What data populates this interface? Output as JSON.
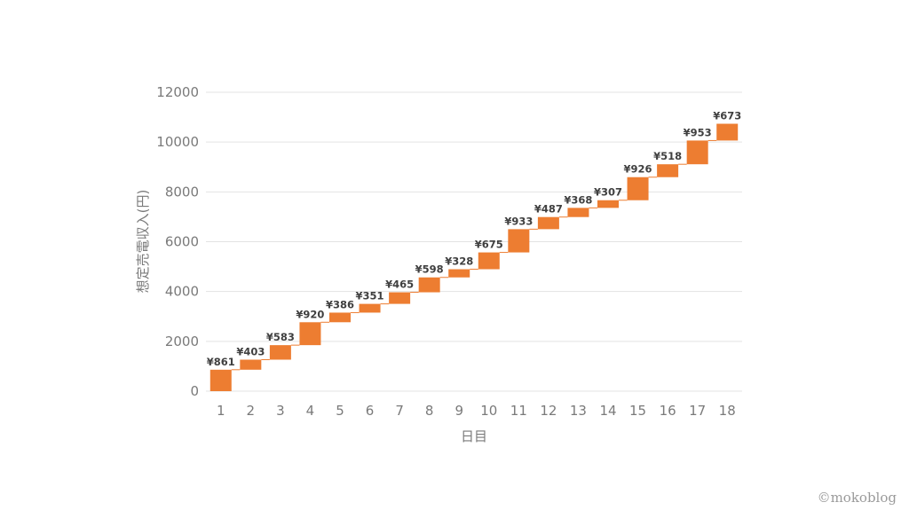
{
  "chart_data": {
    "type": "waterfall",
    "categories": [
      "1",
      "2",
      "3",
      "4",
      "5",
      "6",
      "7",
      "8",
      "9",
      "10",
      "11",
      "12",
      "13",
      "14",
      "15",
      "16",
      "17",
      "18"
    ],
    "values": [
      861,
      403,
      583,
      920,
      386,
      351,
      465,
      598,
      328,
      675,
      933,
      487,
      368,
      307,
      926,
      518,
      953,
      673
    ],
    "data_labels": [
      "¥861",
      "¥403",
      "¥583",
      "¥920",
      "¥386",
      "¥351",
      "¥465",
      "¥598",
      "¥328",
      "¥675",
      "¥933",
      "¥487",
      "¥368",
      "¥307",
      "¥926",
      "¥518",
      "¥953",
      "¥673"
    ],
    "xlabel": "日目",
    "ylabel": "想定売電収入(円)",
    "ylim": [
      0,
      12000
    ],
    "yticks": [
      0,
      2000,
      4000,
      6000,
      8000,
      10000,
      12000
    ],
    "grid": true,
    "legend": "none",
    "bar_color": "#ED7D31"
  },
  "credit": "©mokoblog"
}
